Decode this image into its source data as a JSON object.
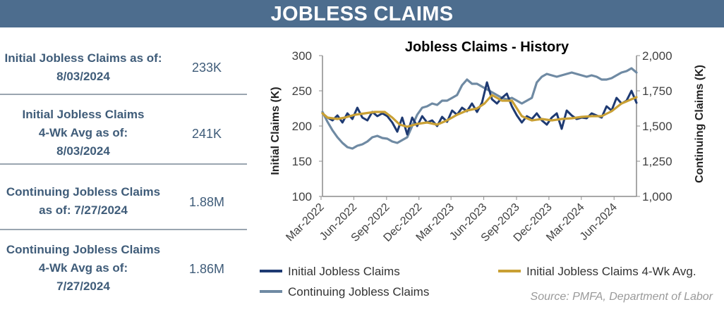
{
  "banner": {
    "title": "JOBLESS CLAIMS"
  },
  "stats": [
    {
      "label_lines": [
        "Initial Jobless Claims as of:",
        "8/03/2024"
      ],
      "value": "233K"
    },
    {
      "label_lines": [
        "Initial Jobless Claims",
        "4-Wk Avg as of:",
        "8/03/2024"
      ],
      "value": "241K"
    },
    {
      "label_lines": [
        "Continuing Jobless Claims",
        "as of: 7/27/2024"
      ],
      "value": "1.88M"
    },
    {
      "label_lines": [
        "Continuing Jobless Claims",
        "4-Wk Avg as of:",
        "7/27/2024"
      ],
      "value": "1.86M"
    }
  ],
  "source": "Source: PMFA, Department of Labor",
  "colors": {
    "banner": "#4d6d8e",
    "stat_text": "#3f5c79",
    "initial": "#1e3a72",
    "avg": "#c9a034",
    "continuing": "#6f8aa3",
    "axis": "#8c8c8c"
  },
  "chart_data": {
    "type": "line",
    "title": "Jobless Claims - History",
    "ylabel": "Initial Claims (K)",
    "y2label": "Continuing  Claims (K)",
    "ylim": [
      100,
      300
    ],
    "yticks": [
      100,
      150,
      200,
      250,
      300
    ],
    "y2lim": [
      1000,
      2000
    ],
    "y2ticks": [
      "1,000",
      "1,250",
      "1,500",
      "1,750",
      "2,000"
    ],
    "x_start": "2022-03-05",
    "x_end": "2024-08-03",
    "xtick_labels": [
      {
        "label": "Mar-2022",
        "date": "2022-03-01"
      },
      {
        "label": "Jun-2022",
        "date": "2022-06-01"
      },
      {
        "label": "Sep-2022",
        "date": "2022-09-01"
      },
      {
        "label": "Dec-2022",
        "date": "2022-12-01"
      },
      {
        "label": "Mar-2023",
        "date": "2023-03-01"
      },
      {
        "label": "Jun-2023",
        "date": "2023-06-01"
      },
      {
        "label": "Sep-2023",
        "date": "2023-09-01"
      },
      {
        "label": "Dec-2023",
        "date": "2023-12-01"
      },
      {
        "label": "Mar-2024",
        "date": "2024-03-01"
      },
      {
        "label": "Jun-2024",
        "date": "2024-06-01"
      }
    ],
    "legend": [
      "Initial Jobless Claims",
      "Initial Jobless Claims 4-Wk Avg.",
      "Continuing Jobless Claims"
    ],
    "series": [
      {
        "name": "Initial Jobless Claims",
        "axis": "left",
        "points": [
          [
            "2022-03-05",
            218
          ],
          [
            "2022-03-19",
            212
          ],
          [
            "2022-04-02",
            208
          ],
          [
            "2022-04-16",
            215
          ],
          [
            "2022-04-30",
            205
          ],
          [
            "2022-05-14",
            218
          ],
          [
            "2022-05-28",
            210
          ],
          [
            "2022-06-11",
            226
          ],
          [
            "2022-06-25",
            212
          ],
          [
            "2022-07-09",
            208
          ],
          [
            "2022-07-23",
            220
          ],
          [
            "2022-08-06",
            214
          ],
          [
            "2022-08-20",
            218
          ],
          [
            "2022-09-03",
            214
          ],
          [
            "2022-09-17",
            205
          ],
          [
            "2022-10-01",
            192
          ],
          [
            "2022-10-15",
            212
          ],
          [
            "2022-10-29",
            188
          ],
          [
            "2022-11-12",
            212
          ],
          [
            "2022-11-26",
            200
          ],
          [
            "2022-12-10",
            214
          ],
          [
            "2022-12-24",
            205
          ],
          [
            "2023-01-07",
            208
          ],
          [
            "2023-01-21",
            200
          ],
          [
            "2023-02-04",
            213
          ],
          [
            "2023-02-18",
            206
          ],
          [
            "2023-03-04",
            222
          ],
          [
            "2023-03-18",
            216
          ],
          [
            "2023-04-01",
            226
          ],
          [
            "2023-04-15",
            221
          ],
          [
            "2023-04-29",
            232
          ],
          [
            "2023-05-13",
            220
          ],
          [
            "2023-05-27",
            233
          ],
          [
            "2023-06-10",
            262
          ],
          [
            "2023-06-24",
            238
          ],
          [
            "2023-07-08",
            232
          ],
          [
            "2023-07-22",
            240
          ],
          [
            "2023-08-05",
            246
          ],
          [
            "2023-08-19",
            228
          ],
          [
            "2023-09-02",
            215
          ],
          [
            "2023-09-16",
            205
          ],
          [
            "2023-09-30",
            214
          ],
          [
            "2023-10-14",
            210
          ],
          [
            "2023-10-28",
            218
          ],
          [
            "2023-11-11",
            208
          ],
          [
            "2023-11-25",
            202
          ],
          [
            "2023-12-09",
            212
          ],
          [
            "2023-12-23",
            218
          ],
          [
            "2024-01-06",
            196
          ],
          [
            "2024-01-20",
            222
          ],
          [
            "2024-02-03",
            215
          ],
          [
            "2024-02-17",
            210
          ],
          [
            "2024-03-02",
            212
          ],
          [
            "2024-03-16",
            211
          ],
          [
            "2024-03-30",
            218
          ],
          [
            "2024-04-13",
            215
          ],
          [
            "2024-04-27",
            212
          ],
          [
            "2024-05-11",
            228
          ],
          [
            "2024-05-25",
            222
          ],
          [
            "2024-06-08",
            240
          ],
          [
            "2024-06-22",
            232
          ],
          [
            "2024-07-06",
            236
          ],
          [
            "2024-07-20",
            250
          ],
          [
            "2024-08-03",
            233
          ]
        ]
      },
      {
        "name": "Initial Jobless Claims 4-Wk Avg.",
        "axis": "left",
        "points": [
          [
            "2022-03-05",
            218
          ],
          [
            "2022-03-19",
            212
          ],
          [
            "2022-04-02",
            211
          ],
          [
            "2022-04-16",
            210
          ],
          [
            "2022-05-07",
            212
          ],
          [
            "2022-06-04",
            216
          ],
          [
            "2022-07-02",
            218
          ],
          [
            "2022-07-30",
            220
          ],
          [
            "2022-08-27",
            220
          ],
          [
            "2022-09-17",
            212
          ],
          [
            "2022-10-08",
            202
          ],
          [
            "2022-10-29",
            199
          ],
          [
            "2022-11-26",
            203
          ],
          [
            "2022-12-24",
            205
          ],
          [
            "2023-01-21",
            202
          ],
          [
            "2023-02-18",
            208
          ],
          [
            "2023-03-18",
            216
          ],
          [
            "2023-04-15",
            222
          ],
          [
            "2023-05-13",
            225
          ],
          [
            "2023-06-03",
            232
          ],
          [
            "2023-06-24",
            244
          ],
          [
            "2023-07-22",
            236
          ],
          [
            "2023-08-19",
            236
          ],
          [
            "2023-09-16",
            214
          ],
          [
            "2023-10-14",
            208
          ],
          [
            "2023-11-11",
            210
          ],
          [
            "2023-12-09",
            208
          ],
          [
            "2024-01-06",
            210
          ],
          [
            "2024-02-03",
            211
          ],
          [
            "2024-03-02",
            213
          ],
          [
            "2024-03-30",
            214
          ],
          [
            "2024-04-27",
            214
          ],
          [
            "2024-05-25",
            221
          ],
          [
            "2024-06-22",
            232
          ],
          [
            "2024-07-20",
            238
          ],
          [
            "2024-08-03",
            241
          ]
        ]
      },
      {
        "name": "Continuing Jobless Claims",
        "axis": "right",
        "points": [
          [
            "2022-03-05",
            1600
          ],
          [
            "2022-03-19",
            1530
          ],
          [
            "2022-04-02",
            1470
          ],
          [
            "2022-04-16",
            1420
          ],
          [
            "2022-04-30",
            1380
          ],
          [
            "2022-05-14",
            1350
          ],
          [
            "2022-05-28",
            1340
          ],
          [
            "2022-06-11",
            1360
          ],
          [
            "2022-06-25",
            1370
          ],
          [
            "2022-07-09",
            1390
          ],
          [
            "2022-07-23",
            1420
          ],
          [
            "2022-08-06",
            1430
          ],
          [
            "2022-08-20",
            1415
          ],
          [
            "2022-09-03",
            1410
          ],
          [
            "2022-09-17",
            1390
          ],
          [
            "2022-10-01",
            1380
          ],
          [
            "2022-10-15",
            1400
          ],
          [
            "2022-10-29",
            1420
          ],
          [
            "2022-11-12",
            1500
          ],
          [
            "2022-11-26",
            1580
          ],
          [
            "2022-12-10",
            1630
          ],
          [
            "2022-12-24",
            1640
          ],
          [
            "2023-01-07",
            1660
          ],
          [
            "2023-01-21",
            1650
          ],
          [
            "2023-02-04",
            1680
          ],
          [
            "2023-02-18",
            1680
          ],
          [
            "2023-03-04",
            1700
          ],
          [
            "2023-03-18",
            1720
          ],
          [
            "2023-04-01",
            1790
          ],
          [
            "2023-04-15",
            1830
          ],
          [
            "2023-04-29",
            1800
          ],
          [
            "2023-05-13",
            1800
          ],
          [
            "2023-05-27",
            1780
          ],
          [
            "2023-06-10",
            1760
          ],
          [
            "2023-06-24",
            1740
          ],
          [
            "2023-07-08",
            1720
          ],
          [
            "2023-07-22",
            1700
          ],
          [
            "2023-08-05",
            1690
          ],
          [
            "2023-08-19",
            1700
          ],
          [
            "2023-09-02",
            1680
          ],
          [
            "2023-09-16",
            1660
          ],
          [
            "2023-09-30",
            1680
          ],
          [
            "2023-10-14",
            1700
          ],
          [
            "2023-10-28",
            1810
          ],
          [
            "2023-11-11",
            1850
          ],
          [
            "2023-11-25",
            1870
          ],
          [
            "2023-12-09",
            1860
          ],
          [
            "2023-12-23",
            1850
          ],
          [
            "2024-01-06",
            1860
          ],
          [
            "2024-01-20",
            1870
          ],
          [
            "2024-02-03",
            1880
          ],
          [
            "2024-02-17",
            1870
          ],
          [
            "2024-03-02",
            1860
          ],
          [
            "2024-03-16",
            1850
          ],
          [
            "2024-03-30",
            1860
          ],
          [
            "2024-04-13",
            1850
          ],
          [
            "2024-04-27",
            1830
          ],
          [
            "2024-05-11",
            1830
          ],
          [
            "2024-05-25",
            1840
          ],
          [
            "2024-06-08",
            1860
          ],
          [
            "2024-06-22",
            1880
          ],
          [
            "2024-07-06",
            1890
          ],
          [
            "2024-07-20",
            1910
          ],
          [
            "2024-08-03",
            1880
          ]
        ]
      }
    ]
  }
}
